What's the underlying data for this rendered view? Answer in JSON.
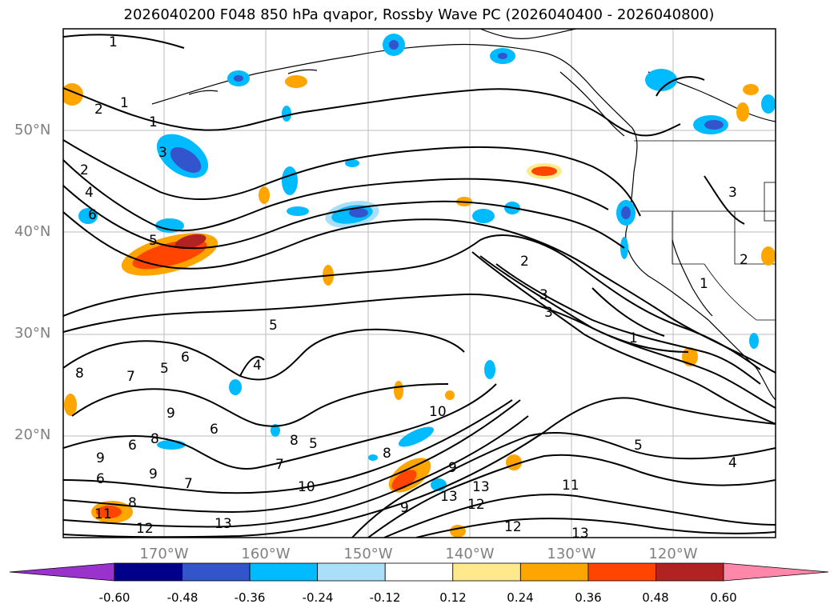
{
  "title": "2026040200 F048 850 hPa qvapor, Rossby Wave PC (2026040400 - 2026040800)",
  "lat_labels": [
    "50°N",
    "40°N",
    "30°N",
    "20°N"
  ],
  "lon_labels": [
    "170°W",
    "160°W",
    "150°W",
    "140°W",
    "130°W",
    "120°W"
  ],
  "colorbar": {
    "colors": [
      "#9933cc",
      "#00008b",
      "#3355cc",
      "#00bbff",
      "#aadffa",
      "#ffffff",
      "#ffe98a",
      "#ffa500",
      "#ff4500",
      "#b22222",
      "#ff88aa"
    ],
    "tick_labels": [
      "-0.60",
      "-0.48",
      "-0.36",
      "-0.24",
      "-0.12",
      "0.12",
      "0.24",
      "0.36",
      "0.48",
      "0.60"
    ]
  },
  "contour_labels": [
    "1",
    "2",
    "1",
    "1",
    "3",
    "2",
    "4",
    "6",
    "5",
    "2",
    "3",
    "3",
    "1",
    "3",
    "2",
    "1",
    "5",
    "4",
    "6",
    "6",
    "5",
    "7",
    "8",
    "9",
    "8",
    "6",
    "7",
    "8",
    "5",
    "9",
    "6",
    "8",
    "9",
    "10",
    "7",
    "8",
    "10",
    "11",
    "12",
    "13",
    "12",
    "13",
    "11",
    "12",
    "13",
    "13",
    "5",
    "4",
    "9",
    "9"
  ]
}
